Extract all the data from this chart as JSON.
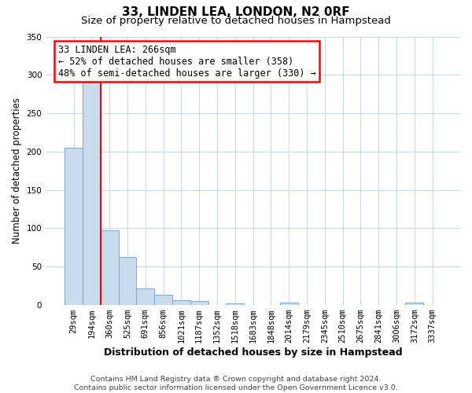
{
  "title": "33, LINDEN LEA, LONDON, N2 0RF",
  "subtitle": "Size of property relative to detached houses in Hampstead",
  "xlabel": "Distribution of detached houses by size in Hampstead",
  "ylabel": "Number of detached properties",
  "bar_color": "#c8dced",
  "bar_edge_color": "#7aaac8",
  "background_color": "#ffffff",
  "grid_color": "#c8d8e8",
  "categories": [
    "29sqm",
    "194sqm",
    "360sqm",
    "525sqm",
    "691sqm",
    "856sqm",
    "1021sqm",
    "1187sqm",
    "1352sqm",
    "1518sqm",
    "1683sqm",
    "1848sqm",
    "2014sqm",
    "2179sqm",
    "2345sqm",
    "2510sqm",
    "2675sqm",
    "2841sqm",
    "3006sqm",
    "3172sqm",
    "3337sqm"
  ],
  "values": [
    205,
    290,
    97,
    62,
    21,
    13,
    6,
    5,
    0,
    2,
    0,
    0,
    3,
    0,
    0,
    0,
    0,
    0,
    0,
    3,
    0
  ],
  "ylim": [
    0,
    350
  ],
  "yticks": [
    0,
    50,
    100,
    150,
    200,
    250,
    300,
    350
  ],
  "property_line_x": 1.5,
  "annotation_title": "33 LINDEN LEA: 266sqm",
  "annotation_line2": "← 52% of detached houses are smaller (358)",
  "annotation_line3": "48% of semi-detached houses are larger (330) →",
  "footer_line1": "Contains HM Land Registry data ® Crown copyright and database right 2024.",
  "footer_line2": "Contains public sector information licensed under the Open Government Licence v3.0.",
  "title_fontsize": 11,
  "subtitle_fontsize": 9.5,
  "ylabel_fontsize": 8.5,
  "xlabel_fontsize": 9,
  "tick_fontsize": 7.5,
  "annotation_fontsize": 8.5,
  "footer_fontsize": 6.8
}
